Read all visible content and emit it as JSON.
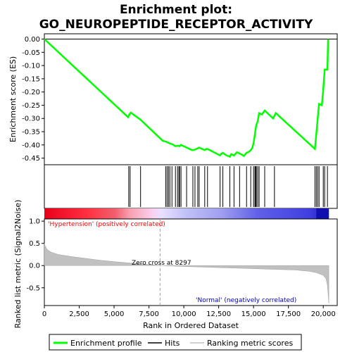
{
  "chart_data": {
    "type": "line",
    "title_line1": "Enrichment plot:",
    "title_line2": "GO_NEUROPEPTIDE_RECEPTOR_ACTIVITY",
    "es_panel": {
      "ylabel": "Enrichment score (ES)",
      "ylim": [
        -0.475,
        0.02
      ],
      "yticks": [
        0.0,
        -0.05,
        -0.1,
        -0.15,
        -0.2,
        -0.25,
        -0.3,
        -0.35,
        -0.4,
        -0.45
      ],
      "ytick_labels": [
        "0.00",
        "-0.05",
        "-0.10",
        "-0.15",
        "-0.20",
        "-0.25",
        "-0.30",
        "-0.35",
        "-0.40",
        "-0.45"
      ],
      "series_color": "#00ff00",
      "points": [
        [
          0,
          0.0
        ],
        [
          6000,
          -0.295
        ],
        [
          6100,
          -0.285
        ],
        [
          6200,
          -0.278
        ],
        [
          6900,
          -0.305
        ],
        [
          8500,
          -0.385
        ],
        [
          8700,
          -0.387
        ],
        [
          8800,
          -0.39
        ],
        [
          8900,
          -0.392
        ],
        [
          9000,
          -0.395
        ],
        [
          9200,
          -0.398
        ],
        [
          9400,
          -0.405
        ],
        [
          9600,
          -0.403
        ],
        [
          9700,
          -0.405
        ],
        [
          9800,
          -0.4
        ],
        [
          10000,
          -0.405
        ],
        [
          10200,
          -0.41
        ],
        [
          10600,
          -0.42
        ],
        [
          10800,
          -0.418
        ],
        [
          11000,
          -0.413
        ],
        [
          11100,
          -0.41
        ],
        [
          11500,
          -0.42
        ],
        [
          11600,
          -0.415
        ],
        [
          11800,
          -0.418
        ],
        [
          12600,
          -0.44
        ],
        [
          12700,
          -0.433
        ],
        [
          12800,
          -0.43
        ],
        [
          13000,
          -0.438
        ],
        [
          13300,
          -0.445
        ],
        [
          13400,
          -0.435
        ],
        [
          13600,
          -0.44
        ],
        [
          13800,
          -0.428
        ],
        [
          14100,
          -0.435
        ],
        [
          14300,
          -0.442
        ],
        [
          14500,
          -0.43
        ],
        [
          14700,
          -0.425
        ],
        [
          14800,
          -0.42
        ],
        [
          14900,
          -0.412
        ],
        [
          15000,
          -0.395
        ],
        [
          15100,
          -0.36
        ],
        [
          15150,
          -0.34
        ],
        [
          15200,
          -0.325
        ],
        [
          15300,
          -0.31
        ],
        [
          15400,
          -0.28
        ],
        [
          15600,
          -0.285
        ],
        [
          15800,
          -0.27
        ],
        [
          16400,
          -0.3
        ],
        [
          16600,
          -0.28
        ],
        [
          19400,
          -0.415
        ],
        [
          19500,
          -0.36
        ],
        [
          19600,
          -0.3
        ],
        [
          19700,
          -0.245
        ],
        [
          19900,
          -0.25
        ],
        [
          20000,
          -0.19
        ],
        [
          20100,
          -0.115
        ],
        [
          20300,
          -0.115
        ],
        [
          20350,
          0.0
        ]
      ]
    },
    "hits_panel": {
      "hits": [
        6050,
        6150,
        6900,
        8700,
        8800,
        8900,
        9000,
        9150,
        9400,
        9550,
        9650,
        9700,
        9800,
        10200,
        10650,
        10800,
        11000,
        11100,
        11500,
        11700,
        12600,
        12800,
        13300,
        13600,
        14000,
        14500,
        14800,
        15000,
        15100,
        15150,
        15200,
        15300,
        15400,
        15800,
        16500,
        19400,
        19500,
        19600,
        19700,
        20000,
        20100,
        20300
      ]
    },
    "metric_panel": {
      "ylabel": "Ranked list metric (Signal2Noise)",
      "ylim": [
        -0.9,
        1.05
      ],
      "yticks": [
        1.0,
        0.5,
        0.0,
        -0.5
      ],
      "ytick_labels": [
        "1.0",
        "0.5",
        "0.0",
        "-0.5"
      ],
      "fill_color": "#c0c0c0",
      "zero_cross_label": "Zero cross at 8297",
      "zero_cross": 8297,
      "positive_label": "'Hypertension' (positively correlated)",
      "positive_color": "#ff0000",
      "negative_label": "'Normal' (negatively correlated)",
      "negative_color": "#0000cd",
      "profile": [
        [
          0,
          0.5
        ],
        [
          50,
          0.45
        ],
        [
          200,
          0.36
        ],
        [
          500,
          0.3
        ],
        [
          1000,
          0.25
        ],
        [
          2000,
          0.2
        ],
        [
          3000,
          0.16
        ],
        [
          4000,
          0.12
        ],
        [
          5000,
          0.09
        ],
        [
          6000,
          0.06
        ],
        [
          7000,
          0.04
        ],
        [
          8297,
          0.0
        ],
        [
          10000,
          -0.02
        ],
        [
          12000,
          -0.04
        ],
        [
          14000,
          -0.06
        ],
        [
          16000,
          -0.08
        ],
        [
          18000,
          -0.1
        ],
        [
          19000,
          -0.13
        ],
        [
          19500,
          -0.16
        ],
        [
          20000,
          -0.22
        ],
        [
          20200,
          -0.3
        ],
        [
          20300,
          -0.45
        ],
        [
          20400,
          -0.85
        ]
      ]
    },
    "xaxis": {
      "label": "Rank in Ordered Dataset",
      "xlim": [
        0,
        21000
      ],
      "ticks": [
        0,
        2500,
        5000,
        7500,
        10000,
        12500,
        15000,
        17500,
        20000
      ],
      "tick_labels": [
        "0",
        "2,500",
        "5,000",
        "7,500",
        "10,000",
        "12,500",
        "15,000",
        "17,500",
        "20,000"
      ],
      "n_genes": 20400
    },
    "legend": {
      "placement": "bottom",
      "items": [
        {
          "label": "Enrichment profile",
          "color": "#00ff00"
        },
        {
          "label": "Hits",
          "color": "#000000"
        },
        {
          "label": "Ranking metric scores",
          "color": "#c0c0c0"
        }
      ]
    }
  }
}
